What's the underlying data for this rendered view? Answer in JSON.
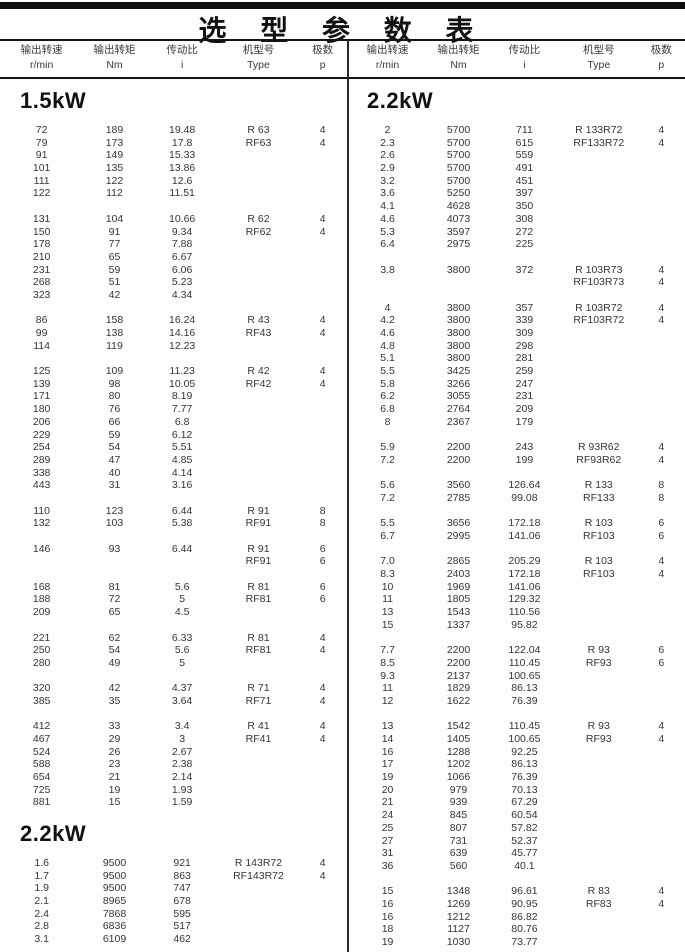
{
  "title": "选 型 参 数 表",
  "columns": [
    {
      "label": "输出转速",
      "unit": "r/min"
    },
    {
      "label": "输出转矩",
      "unit": "Nm"
    },
    {
      "label": "传动比",
      "unit": "i"
    },
    {
      "label": "机型号",
      "unit": "Type"
    },
    {
      "label": "极数",
      "unit": "p"
    }
  ],
  "panels": [
    {
      "sections": [
        {
          "heading": "1.5kW",
          "groups": [
            [
              [
                "72",
                "189",
                "19.48",
                "R 63",
                "4"
              ],
              [
                "79",
                "173",
                "17.8",
                "RF63",
                "4"
              ],
              [
                "91",
                "149",
                "15.33",
                "",
                ""
              ],
              [
                "101",
                "135",
                "13.86",
                "",
                ""
              ],
              [
                "111",
                "122",
                "12.6",
                "",
                ""
              ],
              [
                "122",
                "112",
                "11.51",
                "",
                ""
              ]
            ],
            [
              [
                "131",
                "104",
                "10.66",
                "R 62",
                "4"
              ],
              [
                "150",
                "91",
                "9.34",
                "RF62",
                "4"
              ],
              [
                "178",
                "77",
                "7.88",
                "",
                ""
              ],
              [
                "210",
                "65",
                "6.67",
                "",
                ""
              ],
              [
                "231",
                "59",
                "6.06",
                "",
                ""
              ],
              [
                "268",
                "51",
                "5.23",
                "",
                ""
              ],
              [
                "323",
                "42",
                "4.34",
                "",
                ""
              ]
            ],
            [
              [
                "86",
                "158",
                "16.24",
                "R 43",
                "4"
              ],
              [
                "99",
                "138",
                "14.16",
                "RF43",
                "4"
              ],
              [
                "114",
                "119",
                "12.23",
                "",
                ""
              ]
            ],
            [
              [
                "125",
                "109",
                "11.23",
                "R 42",
                "4"
              ],
              [
                "139",
                "98",
                "10.05",
                "RF42",
                "4"
              ],
              [
                "171",
                "80",
                "8.19",
                "",
                ""
              ],
              [
                "180",
                "76",
                "7.77",
                "",
                ""
              ],
              [
                "206",
                "66",
                "6.8",
                "",
                ""
              ],
              [
                "229",
                "59",
                "6.12",
                "",
                ""
              ],
              [
                "254",
                "54",
                "5.51",
                "",
                ""
              ],
              [
                "289",
                "47",
                "4.85",
                "",
                ""
              ],
              [
                "338",
                "40",
                "4.14",
                "",
                ""
              ],
              [
                "443",
                "31",
                "3.16",
                "",
                ""
              ]
            ],
            [
              [
                "110",
                "123",
                "6.44",
                "R 91",
                "8"
              ],
              [
                "132",
                "103",
                "5.38",
                "RF91",
                "8"
              ]
            ],
            [
              [
                "146",
                "93",
                "6.44",
                "R 91",
                "6"
              ],
              [
                "",
                "",
                "",
                "RF91",
                "6"
              ]
            ],
            [
              [
                "168",
                "81",
                "5.6",
                "R 81",
                "6"
              ],
              [
                "188",
                "72",
                "5",
                "RF81",
                "6"
              ],
              [
                "209",
                "65",
                "4.5",
                "",
                ""
              ]
            ],
            [
              [
                "221",
                "62",
                "6.33",
                "R 81",
                "4"
              ],
              [
                "250",
                "54",
                "5.6",
                "RF81",
                "4"
              ],
              [
                "280",
                "49",
                "5",
                "",
                ""
              ]
            ],
            [
              [
                "320",
                "42",
                "4.37",
                "R 71",
                "4"
              ],
              [
                "385",
                "35",
                "3.64",
                "RF71",
                "4"
              ]
            ],
            [
              [
                "412",
                "33",
                "3.4",
                "R 41",
                "4"
              ],
              [
                "467",
                "29",
                "3",
                "RF41",
                "4"
              ],
              [
                "524",
                "26",
                "2.67",
                "",
                ""
              ],
              [
                "588",
                "23",
                "2.38",
                "",
                ""
              ],
              [
                "654",
                "21",
                "2.14",
                "",
                ""
              ],
              [
                "725",
                "19",
                "1.93",
                "",
                ""
              ],
              [
                "881",
                "15",
                "1.59",
                "",
                ""
              ]
            ]
          ]
        },
        {
          "heading": "2.2kW",
          "groups": [
            [
              [
                "1.6",
                "9500",
                "921",
                "R 143R72",
                "4"
              ],
              [
                "1.7",
                "9500",
                "863",
                "RF143R72",
                "4"
              ],
              [
                "1.9",
                "9500",
                "747",
                "",
                ""
              ],
              [
                "2.1",
                "8965",
                "678",
                "",
                ""
              ],
              [
                "2.4",
                "7868",
                "595",
                "",
                ""
              ],
              [
                "2.8",
                "6836",
                "517",
                "",
                ""
              ],
              [
                "3.1",
                "6109",
                "462",
                "",
                ""
              ]
            ]
          ]
        }
      ]
    },
    {
      "sections": [
        {
          "heading": "2.2kW",
          "groups": [
            [
              [
                "2",
                "5700",
                "711",
                "R 133R72",
                "4"
              ],
              [
                "2.3",
                "5700",
                "615",
                "RF133R72",
                "4"
              ],
              [
                "2.6",
                "5700",
                "559",
                "",
                ""
              ],
              [
                "2.9",
                "5700",
                "491",
                "",
                ""
              ],
              [
                "3.2",
                "5700",
                "451",
                "",
                ""
              ],
              [
                "3.6",
                "5250",
                "397",
                "",
                ""
              ],
              [
                "4.1",
                "4628",
                "350",
                "",
                ""
              ],
              [
                "4.6",
                "4073",
                "308",
                "",
                ""
              ],
              [
                "5.3",
                "3597",
                "272",
                "",
                ""
              ],
              [
                "6.4",
                "2975",
                "225",
                "",
                ""
              ]
            ],
            [
              [
                "3.8",
                "3800",
                "372",
                "R 103R73",
                "4"
              ],
              [
                "",
                "",
                "",
                "RF103R73",
                "4"
              ]
            ],
            [
              [
                "4",
                "3800",
                "357",
                "R 103R72",
                "4"
              ],
              [
                "4.2",
                "3800",
                "339",
                "RF103R72",
                "4"
              ],
              [
                "4.6",
                "3800",
                "309",
                "",
                ""
              ],
              [
                "4.8",
                "3800",
                "298",
                "",
                ""
              ],
              [
                "5.1",
                "3800",
                "281",
                "",
                ""
              ],
              [
                "5.5",
                "3425",
                "259",
                "",
                ""
              ],
              [
                "5.8",
                "3266",
                "247",
                "",
                ""
              ],
              [
                "6.2",
                "3055",
                "231",
                "",
                ""
              ],
              [
                "6.8",
                "2764",
                "209",
                "",
                ""
              ],
              [
                "8",
                "2367",
                "179",
                "",
                ""
              ]
            ],
            [
              [
                "5.9",
                "2200",
                "243",
                "R 93R62",
                "4"
              ],
              [
                "7.2",
                "2200",
                "199",
                "RF93R62",
                "4"
              ]
            ],
            [
              [
                "5.6",
                "3560",
                "126.64",
                "R 133",
                "8"
              ],
              [
                "7.2",
                "2785",
                "99.08",
                "RF133",
                "8"
              ]
            ],
            [
              [
                "5.5",
                "3656",
                "172.18",
                "R 103",
                "6"
              ],
              [
                "6.7",
                "2995",
                "141.06",
                "RF103",
                "6"
              ]
            ],
            [
              [
                "7.0",
                "2865",
                "205.29",
                "R 103",
                "4"
              ],
              [
                "8.3",
                "2403",
                "172.18",
                "RF103",
                "4"
              ],
              [
                "10",
                "1969",
                "141.06",
                "",
                ""
              ],
              [
                "11",
                "1805",
                "129.32",
                "",
                ""
              ],
              [
                "13",
                "1543",
                "110.56",
                "",
                ""
              ],
              [
                "15",
                "1337",
                "95.82",
                "",
                ""
              ]
            ],
            [
              [
                "7.7",
                "2200",
                "122.04",
                "R 93",
                "6"
              ],
              [
                "8.5",
                "2200",
                "110.45",
                "RF93",
                "6"
              ],
              [
                "9.3",
                "2137",
                "100.65",
                "",
                ""
              ],
              [
                "11",
                "1829",
                "86.13",
                "",
                ""
              ],
              [
                "12",
                "1622",
                "76.39",
                "",
                ""
              ]
            ],
            [
              [
                "13",
                "1542",
                "110.45",
                "R 93",
                "4"
              ],
              [
                "14",
                "1405",
                "100.65",
                "RF93",
                "4"
              ],
              [
                "16",
                "1288",
                "92.25",
                "",
                ""
              ],
              [
                "17",
                "1202",
                "86.13",
                "",
                ""
              ],
              [
                "19",
                "1066",
                "76.39",
                "",
                ""
              ],
              [
                "20",
                "979",
                "70.13",
                "",
                ""
              ],
              [
                "21",
                "939",
                "67.29",
                "",
                ""
              ],
              [
                "24",
                "845",
                "60.54",
                "",
                ""
              ],
              [
                "25",
                "807",
                "57.82",
                "",
                ""
              ],
              [
                "27",
                "731",
                "52.37",
                "",
                ""
              ],
              [
                "31",
                "639",
                "45.77",
                "",
                ""
              ],
              [
                "36",
                "560",
                "40.1",
                "",
                ""
              ]
            ],
            [
              [
                "15",
                "1348",
                "96.61",
                "R 83",
                "4"
              ],
              [
                "16",
                "1269",
                "90.95",
                "RF83",
                "4"
              ],
              [
                "16",
                "1212",
                "86.82",
                "",
                ""
              ],
              [
                "18",
                "1127",
                "80.76",
                "",
                ""
              ],
              [
                "19",
                "1030",
                "73.77",
                "",
                ""
              ]
            ]
          ]
        }
      ]
    }
  ]
}
